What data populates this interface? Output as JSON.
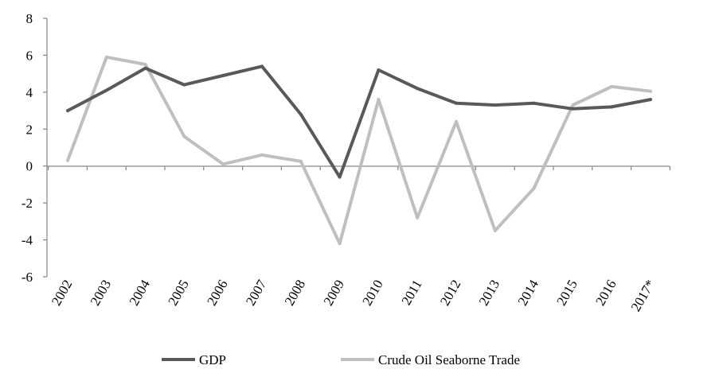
{
  "chart_data": {
    "type": "line",
    "title": "",
    "xlabel": "",
    "ylabel": "",
    "categories": [
      "2002",
      "2003",
      "2004",
      "2005",
      "2006",
      "2007",
      "2008",
      "2009",
      "2010",
      "2011",
      "2012",
      "2013",
      "2014",
      "2015",
      "2016",
      "2017*"
    ],
    "ylim": [
      -6,
      8
    ],
    "yticks": [
      -6,
      -4,
      -2,
      0,
      2,
      4,
      6,
      8
    ],
    "grid": false,
    "legend_position": "bottom",
    "series": [
      {
        "name": "GDP",
        "color": "#595959",
        "values": [
          3.0,
          4.1,
          5.3,
          4.4,
          4.9,
          5.4,
          2.8,
          -0.6,
          5.2,
          4.2,
          3.4,
          3.3,
          3.4,
          3.1,
          3.2,
          3.6
        ]
      },
      {
        "name": "Crude Oil Seaborne Trade",
        "color": "#bfbfbf",
        "values": [
          0.3,
          5.9,
          5.5,
          1.6,
          0.1,
          0.6,
          0.25,
          -4.2,
          3.6,
          -2.8,
          2.4,
          -3.5,
          -1.2,
          3.3,
          4.3,
          4.05
        ]
      }
    ]
  }
}
